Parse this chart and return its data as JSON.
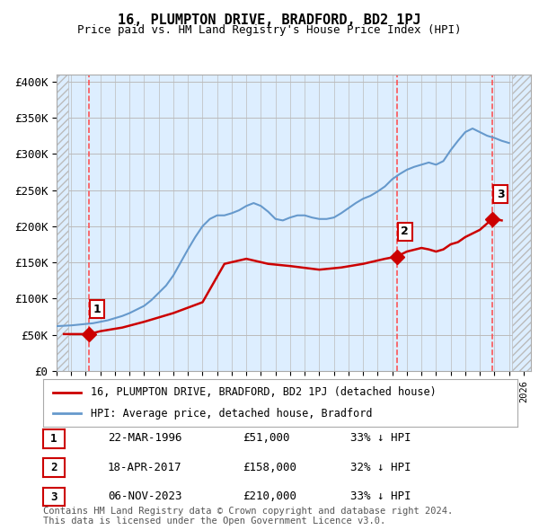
{
  "title": "16, PLUMPTON DRIVE, BRADFORD, BD2 1PJ",
  "subtitle": "Price paid vs. HM Land Registry's House Price Index (HPI)",
  "ylabel_ticks": [
    "£0",
    "£50K",
    "£100K",
    "£150K",
    "£200K",
    "£250K",
    "£300K",
    "£350K",
    "£400K"
  ],
  "ytick_values": [
    0,
    50000,
    100000,
    150000,
    200000,
    250000,
    300000,
    350000,
    400000
  ],
  "ylim": [
    0,
    410000
  ],
  "xlim_start": 1994.0,
  "xlim_end": 2026.5,
  "background_color": "#ffffff",
  "plot_bg_color": "#ddeeff",
  "hatch_color": "#cccccc",
  "grid_color": "#bbbbbb",
  "transactions": [
    {
      "date_num": 1996.22,
      "price": 51000,
      "label": "1"
    },
    {
      "date_num": 2017.3,
      "price": 158000,
      "label": "2"
    },
    {
      "date_num": 2023.85,
      "price": 210000,
      "label": "3"
    }
  ],
  "transaction_color": "#cc0000",
  "vline_color": "#ff4444",
  "hpi_line_color": "#6699cc",
  "house_line_color": "#cc0000",
  "legend_entries": [
    "16, PLUMPTON DRIVE, BRADFORD, BD2 1PJ (detached house)",
    "HPI: Average price, detached house, Bradford"
  ],
  "table_rows": [
    {
      "num": "1",
      "date": "22-MAR-1996",
      "price": "£51,000",
      "hpi": "33% ↓ HPI"
    },
    {
      "num": "2",
      "date": "18-APR-2017",
      "price": "£158,000",
      "hpi": "32% ↓ HPI"
    },
    {
      "num": "3",
      "date": "06-NOV-2023",
      "price": "£210,000",
      "hpi": "33% ↓ HPI"
    }
  ],
  "footnote": "Contains HM Land Registry data © Crown copyright and database right 2024.\nThis data is licensed under the Open Government Licence v3.0.",
  "hpi_data": {
    "years": [
      1994.0,
      1994.5,
      1995.0,
      1995.5,
      1996.0,
      1996.5,
      1997.0,
      1997.5,
      1998.0,
      1998.5,
      1999.0,
      1999.5,
      2000.0,
      2000.5,
      2001.0,
      2001.5,
      2002.0,
      2002.5,
      2003.0,
      2003.5,
      2004.0,
      2004.5,
      2005.0,
      2005.5,
      2006.0,
      2006.5,
      2007.0,
      2007.5,
      2008.0,
      2008.5,
      2009.0,
      2009.5,
      2010.0,
      2010.5,
      2011.0,
      2011.5,
      2012.0,
      2012.5,
      2013.0,
      2013.5,
      2014.0,
      2014.5,
      2015.0,
      2015.5,
      2016.0,
      2016.5,
      2017.0,
      2017.5,
      2018.0,
      2018.5,
      2019.0,
      2019.5,
      2020.0,
      2020.5,
      2021.0,
      2021.5,
      2022.0,
      2022.5,
      2023.0,
      2023.5,
      2024.0,
      2024.5,
      2025.0
    ],
    "values": [
      62000,
      62500,
      63000,
      64000,
      65000,
      66000,
      68000,
      70000,
      73000,
      76000,
      80000,
      85000,
      90000,
      98000,
      108000,
      118000,
      132000,
      150000,
      168000,
      185000,
      200000,
      210000,
      215000,
      215000,
      218000,
      222000,
      228000,
      232000,
      228000,
      220000,
      210000,
      208000,
      212000,
      215000,
      215000,
      212000,
      210000,
      210000,
      212000,
      218000,
      225000,
      232000,
      238000,
      242000,
      248000,
      255000,
      265000,
      272000,
      278000,
      282000,
      285000,
      288000,
      285000,
      290000,
      305000,
      318000,
      330000,
      335000,
      330000,
      325000,
      322000,
      318000,
      315000
    ]
  },
  "house_data": {
    "years": [
      1994.5,
      1995.5,
      1996.22,
      1997.0,
      1998.5,
      2000.0,
      2002.0,
      2004.0,
      2005.5,
      2007.0,
      2008.5,
      2010.0,
      2012.0,
      2013.5,
      2015.0,
      2016.5,
      2017.3,
      2018.0,
      2019.0,
      2019.5,
      2020.0,
      2020.5,
      2021.0,
      2021.5,
      2022.0,
      2022.5,
      2023.0,
      2023.85,
      2024.0,
      2024.5
    ],
    "values": [
      51000,
      51000,
      51000,
      55000,
      60000,
      68000,
      80000,
      95000,
      148000,
      155000,
      148000,
      145000,
      140000,
      143000,
      148000,
      155000,
      158000,
      165000,
      170000,
      168000,
      165000,
      168000,
      175000,
      178000,
      185000,
      190000,
      195000,
      210000,
      210000,
      208000
    ]
  }
}
